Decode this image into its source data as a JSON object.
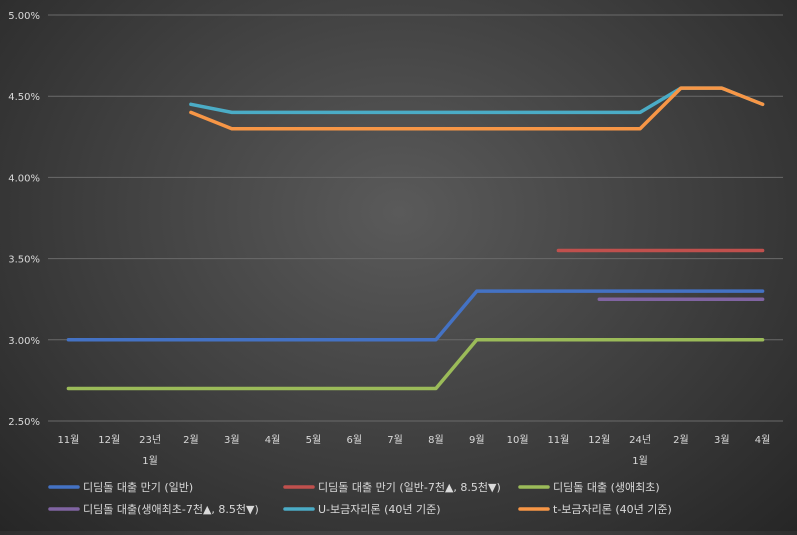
{
  "chart_data": {
    "type": "line",
    "categories": [
      "11월",
      "12월",
      "23년",
      "2월",
      "3월",
      "4월",
      "5월",
      "6월",
      "7월",
      "8월",
      "9월",
      "10월",
      "11월",
      "12월",
      "24년",
      "2월",
      "3월",
      "4월"
    ],
    "category_sublabels": [
      {
        "index": 2,
        "text": "1월"
      },
      {
        "index": 14,
        "text": "1월"
      }
    ],
    "ylim": [
      0.025,
      0.05
    ],
    "yticks": [
      "2.50%",
      "3.00%",
      "3.50%",
      "4.00%",
      "4.50%",
      "5.00%"
    ],
    "ytick_values": [
      0.025,
      0.03,
      0.035,
      0.04,
      0.045,
      0.05
    ],
    "grid": true,
    "legend_position": "bottom",
    "series": [
      {
        "name": "디딤돌 대출 만기 (일반)",
        "color": "#4472c4",
        "values": [
          0.03,
          0.03,
          0.03,
          0.03,
          0.03,
          0.03,
          0.03,
          0.03,
          0.03,
          0.03,
          0.033,
          0.033,
          0.033,
          0.033,
          0.033,
          0.033,
          0.033,
          0.033
        ]
      },
      {
        "name": "디딤돌 대출 만기 (일반-7천▲, 8.5천▼)",
        "color": "#c0504d",
        "values": [
          null,
          null,
          null,
          null,
          null,
          null,
          null,
          null,
          null,
          null,
          null,
          null,
          0.0355,
          0.0355,
          0.0355,
          0.0355,
          0.0355,
          0.0355
        ]
      },
      {
        "name": "디딤돌 대출 (생애최초)",
        "color": "#9bbb59",
        "values": [
          0.027,
          0.027,
          0.027,
          0.027,
          0.027,
          0.027,
          0.027,
          0.027,
          0.027,
          0.027,
          0.03,
          0.03,
          0.03,
          0.03,
          0.03,
          0.03,
          0.03,
          0.03
        ]
      },
      {
        "name": "디딤돌 대출(생애최초-7천▲, 8.5천▼)",
        "color": "#8064a2",
        "values": [
          null,
          null,
          null,
          null,
          null,
          null,
          null,
          null,
          null,
          null,
          null,
          null,
          null,
          0.0325,
          0.0325,
          0.0325,
          0.0325,
          0.0325
        ]
      },
      {
        "name": "U-보금자리론 (40년 기준)",
        "color": "#4bacc6",
        "values": [
          null,
          null,
          null,
          0.0445,
          0.044,
          0.044,
          0.044,
          0.044,
          0.044,
          0.044,
          0.044,
          0.044,
          0.044,
          0.044,
          0.044,
          0.0455,
          0.0455,
          0.0445
        ]
      },
      {
        "name": "t-보금자리론 (40년 기준)",
        "color": "#f79646",
        "values": [
          null,
          null,
          null,
          0.044,
          0.043,
          0.043,
          0.043,
          0.043,
          0.043,
          0.043,
          0.043,
          0.043,
          0.043,
          0.043,
          0.043,
          0.0455,
          0.0455,
          0.0445
        ]
      }
    ]
  }
}
